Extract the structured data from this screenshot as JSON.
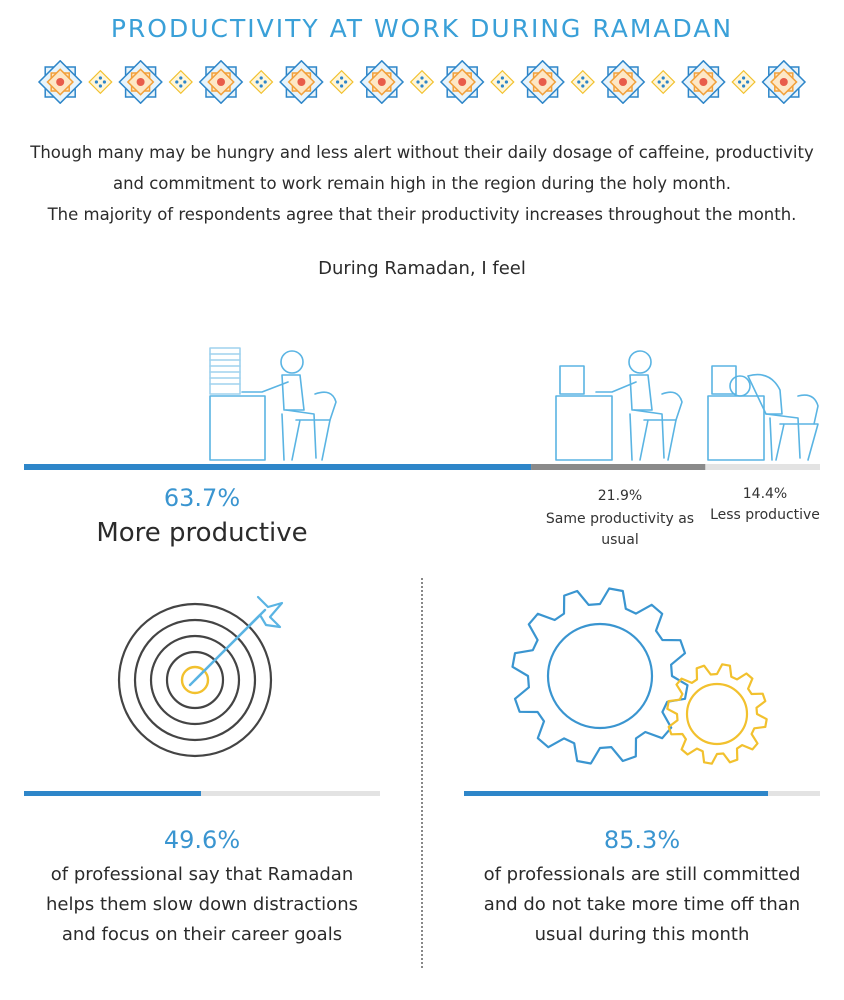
{
  "title": "PRODUCTIVITY AT WORK DURING RAMADAN",
  "intro": [
    "Though many may be hungry and less alert without their daily dosage of caffeine, productivity",
    "and commitment to work remain high in the region during the holy month.",
    "The majority of respondents agree that their productivity increases throughout the month."
  ],
  "question": "During Ramadan, I feel",
  "colors": {
    "title": "#3aa0d8",
    "primary_blue": "#2e86c9",
    "grey": "#8a8a8a",
    "light_grey": "#e3e3e3",
    "gold": "#f2c12e"
  },
  "chart_data": [
    {
      "type": "bar",
      "orientation": "horizontal-stacked",
      "title": "During Ramadan, I feel",
      "series": [
        {
          "label": "More productive",
          "value": 63.7,
          "value_label": "63.7%",
          "color": "#2e86c9"
        },
        {
          "label": "Same productivity as usual",
          "value": 21.9,
          "value_label": "21.9%",
          "color": "#8a8a8a"
        },
        {
          "label": "Less productive",
          "value": 14.4,
          "value_label": "14.4%",
          "color": "#e3e3e3"
        }
      ]
    },
    {
      "type": "bar",
      "orientation": "progress",
      "value": 49.6,
      "value_label": "49.6%",
      "description": [
        "of professional say that Ramadan",
        "helps them slow down distractions",
        "and focus on their career goals"
      ]
    },
    {
      "type": "bar",
      "orientation": "progress",
      "value": 85.3,
      "value_label": "85.3%",
      "description": [
        "of professionals are still committed",
        "and do not take more time off than",
        "usual during this month"
      ]
    }
  ]
}
